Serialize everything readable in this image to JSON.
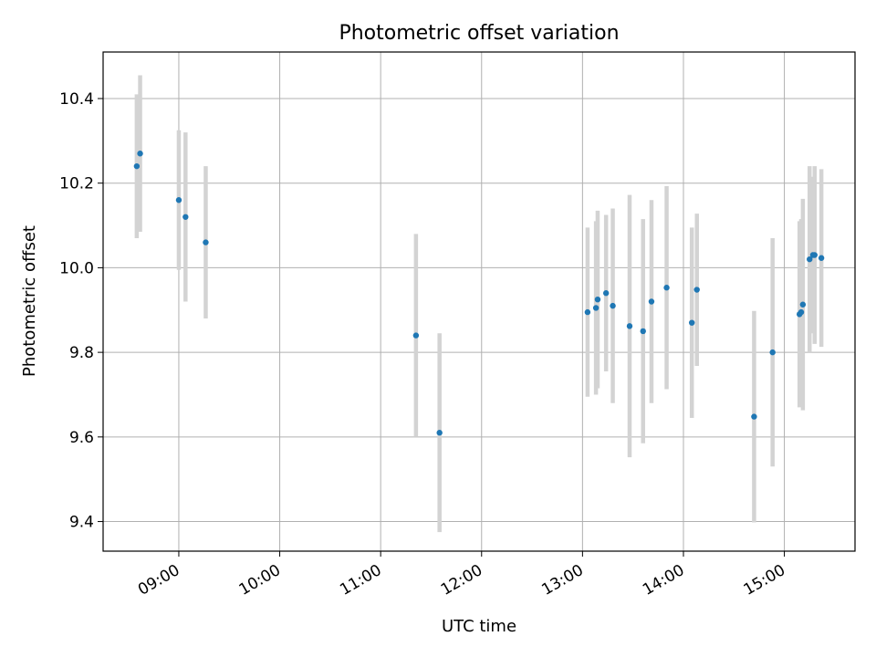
{
  "chart_data": {
    "type": "scatter",
    "title": "Photometric offset variation",
    "xlabel": "UTC time",
    "ylabel": "Photometric offset",
    "x_axis": {
      "kind": "time",
      "range": [
        "08:15",
        "15:42"
      ],
      "ticks": [
        "09:00",
        "10:00",
        "11:00",
        "12:00",
        "13:00",
        "14:00",
        "15:00"
      ]
    },
    "y_axis": {
      "range": [
        9.33,
        10.51
      ],
      "ticks": [
        9.4,
        9.6,
        9.8,
        10.0,
        10.2,
        10.4
      ],
      "tick_labels": [
        "9.4",
        "9.6",
        "9.8",
        "10.0",
        "10.2",
        "10.4"
      ]
    },
    "grid": true,
    "point_color": "#1f77b4",
    "errorbar_color": "#d3d3d3",
    "series": [
      {
        "points": [
          {
            "x": "08:35",
            "y": 10.24,
            "err": 0.17
          },
          {
            "x": "08:37",
            "y": 10.27,
            "err": 0.185
          },
          {
            "x": "09:00",
            "y": 10.16,
            "err": 0.165
          },
          {
            "x": "09:04",
            "y": 10.12,
            "err": 0.2
          },
          {
            "x": "09:16",
            "y": 10.06,
            "err": 0.18
          },
          {
            "x": "11:21",
            "y": 9.84,
            "err": 0.24
          },
          {
            "x": "11:35",
            "y": 9.61,
            "err": 0.235
          },
          {
            "x": "13:03",
            "y": 9.895,
            "err": 0.2
          },
          {
            "x": "13:08",
            "y": 9.905,
            "err": 0.205
          },
          {
            "x": "13:09",
            "y": 9.925,
            "err": 0.21
          },
          {
            "x": "13:14",
            "y": 9.94,
            "err": 0.185
          },
          {
            "x": "13:18",
            "y": 9.91,
            "err": 0.23
          },
          {
            "x": "13:28",
            "y": 9.862,
            "err": 0.31
          },
          {
            "x": "13:36",
            "y": 9.85,
            "err": 0.265
          },
          {
            "x": "13:41",
            "y": 9.92,
            "err": 0.24
          },
          {
            "x": "13:50",
            "y": 9.953,
            "err": 0.24
          },
          {
            "x": "14:05",
            "y": 9.87,
            "err": 0.225
          },
          {
            "x": "14:08",
            "y": 9.948,
            "err": 0.18
          },
          {
            "x": "14:42",
            "y": 9.648,
            "err": 0.25
          },
          {
            "x": "14:53",
            "y": 9.8,
            "err": 0.27
          },
          {
            "x": "15:09",
            "y": 9.89,
            "err": 0.22
          },
          {
            "x": "15:10",
            "y": 9.895,
            "err": 0.22
          },
          {
            "x": "15:11",
            "y": 9.913,
            "err": 0.25
          },
          {
            "x": "15:15",
            "y": 10.02,
            "err": 0.22
          },
          {
            "x": "15:17",
            "y": 10.03,
            "err": 0.185
          },
          {
            "x": "15:18",
            "y": 10.03,
            "err": 0.21
          },
          {
            "x": "15:22",
            "y": 10.023,
            "err": 0.21
          }
        ]
      }
    ]
  }
}
